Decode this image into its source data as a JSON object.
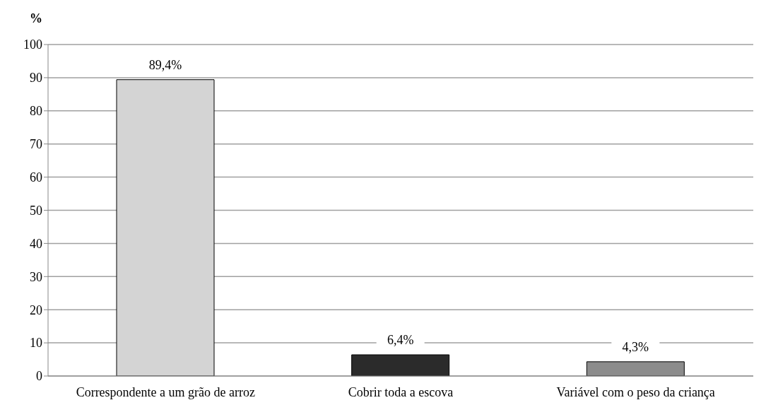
{
  "chart_data": {
    "type": "bar",
    "ylabel": "%",
    "categories": [
      "Correspondente a um grão de arroz",
      "Cobrir toda a escova",
      "Variável com o peso da criança"
    ],
    "values": [
      89.4,
      6.4,
      4.3
    ],
    "value_labels": [
      "89,4%",
      "6,4%",
      "4,3%"
    ],
    "colors": [
      "#d4d4d4",
      "#2b2b2b",
      "#8c8c8c"
    ],
    "ylim": [
      0,
      100
    ],
    "yticks": [
      0,
      10,
      20,
      30,
      40,
      50,
      60,
      70,
      80,
      90,
      100
    ],
    "grid": "y"
  }
}
